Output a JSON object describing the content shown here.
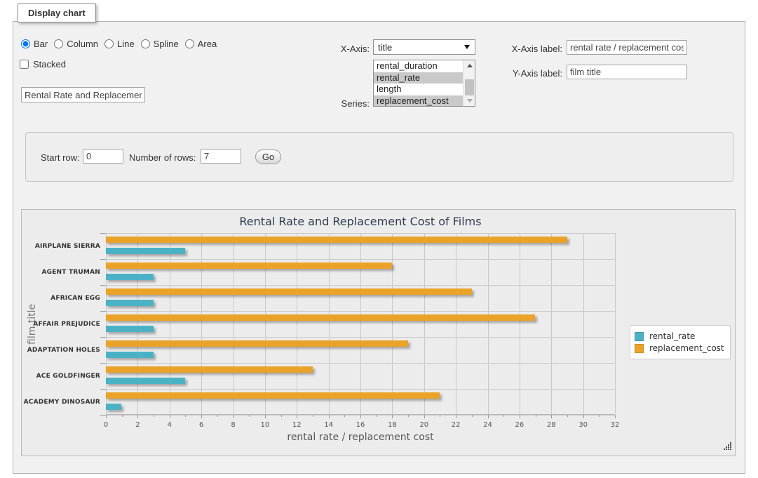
{
  "panel": {
    "legend_title": "Display chart"
  },
  "controls": {
    "chart_type_options": [
      {
        "label": "Bar",
        "selected": true
      },
      {
        "label": "Column",
        "selected": false
      },
      {
        "label": "Line",
        "selected": false
      },
      {
        "label": "Spline",
        "selected": false
      },
      {
        "label": "Area",
        "selected": false
      }
    ],
    "stacked": {
      "label": "Stacked",
      "checked": false
    },
    "chart_title_input": {
      "value": "Rental Rate and Replacement Cost of Films"
    },
    "x_axis": {
      "label": "X-Axis:",
      "selected_value": "title"
    },
    "series_select": {
      "label": "Series:",
      "options": [
        {
          "label": "rental_duration",
          "selected": false
        },
        {
          "label": "rental_rate",
          "selected": true
        },
        {
          "label": "length",
          "selected": false
        },
        {
          "label": "replacement_cost",
          "selected": true
        }
      ]
    },
    "x_axis_label_field": {
      "label": "X-Axis label:",
      "value": "rental rate / replacement cost"
    },
    "y_axis_label_field": {
      "label": "Y-Axis label:",
      "value": "film title"
    },
    "row_controls": {
      "start_label": "Start row:",
      "start_value": "0",
      "count_label": "Number of rows:",
      "count_value": "7",
      "go_label": "Go"
    }
  },
  "chart_data": {
    "type": "bar",
    "orientation": "horizontal",
    "title": "Rental Rate and Replacement Cost of Films",
    "categories": [
      "AIRPLANE SIERRA",
      "AGENT TRUMAN",
      "AFRICAN EGG",
      "AFFAIR PREJUDICE",
      "ADAPTATION HOLES",
      "ACE GOLDFINGER",
      "ACADEMY DINOSAUR"
    ],
    "series": [
      {
        "name": "rental_rate",
        "color": "#4bb2c5",
        "values": [
          4.99,
          2.99,
          2.99,
          2.99,
          2.99,
          4.99,
          0.99
        ]
      },
      {
        "name": "replacement_cost",
        "color": "#eaa228",
        "values": [
          28.99,
          17.99,
          22.99,
          26.99,
          18.99,
          12.99,
          20.99
        ]
      }
    ],
    "xlabel": "rental rate / replacement cost",
    "ylabel": "film title",
    "xlim": [
      0,
      32
    ],
    "x_tick_step": 2,
    "grid": true,
    "legend_position": "right"
  }
}
